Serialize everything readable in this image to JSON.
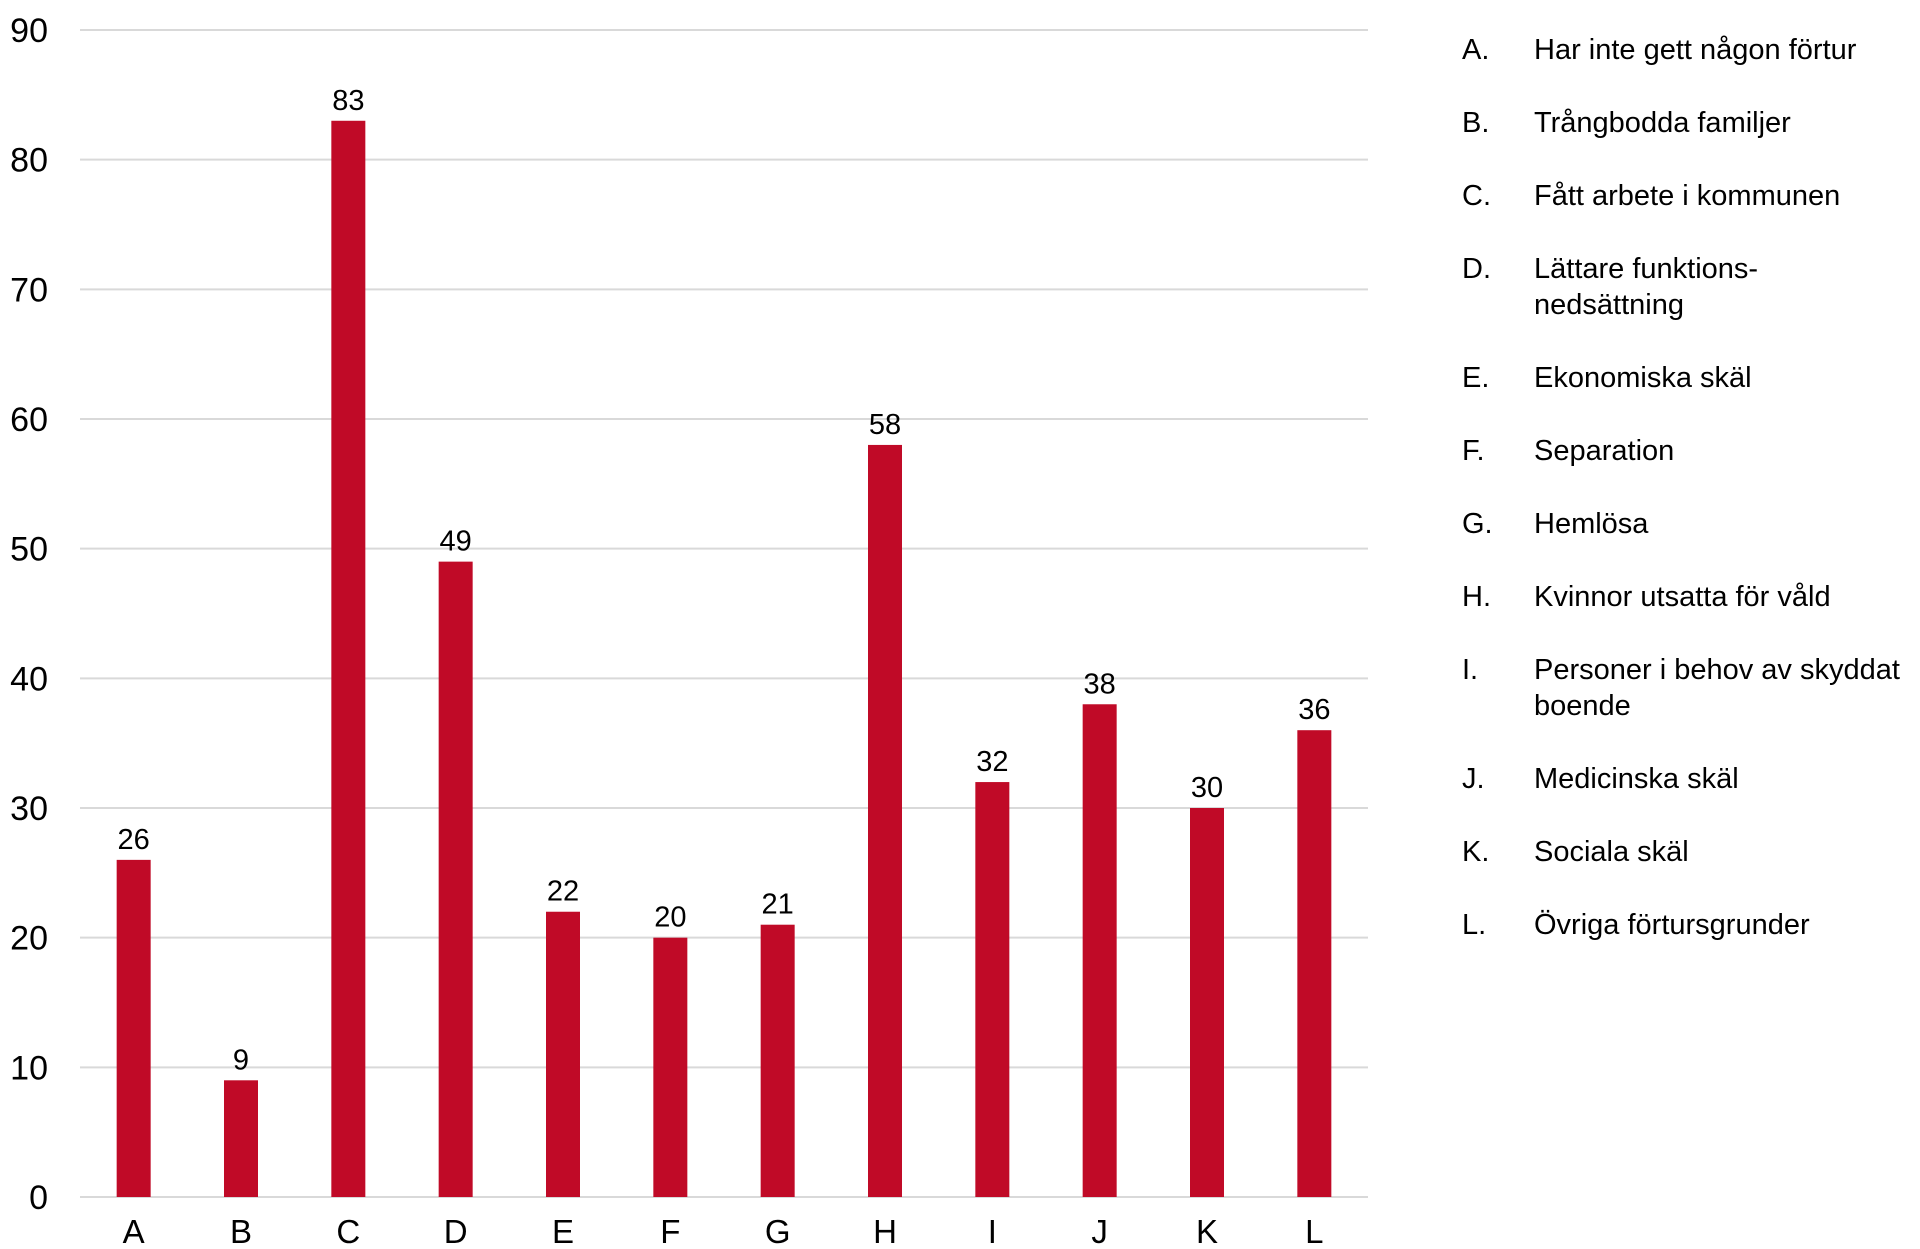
{
  "chart_data": {
    "type": "bar",
    "title": "",
    "xlabel": "",
    "ylabel": "",
    "categories": [
      "A",
      "B",
      "C",
      "D",
      "E",
      "F",
      "G",
      "H",
      "I",
      "J",
      "K",
      "L"
    ],
    "values": [
      26,
      9,
      83,
      49,
      22,
      20,
      21,
      58,
      32,
      38,
      30,
      36
    ],
    "data_labels": [
      "26",
      "9",
      "83",
      "49",
      "22",
      "20",
      "21",
      "58",
      "32",
      "38",
      "30",
      "36"
    ],
    "ylim": [
      0,
      90
    ],
    "yticks": [
      "0",
      "10",
      "20",
      "30",
      "40",
      "50",
      "60",
      "70",
      "80",
      "90"
    ],
    "grid": true,
    "legend_placement": "right",
    "bar_color": "#C00A27",
    "grid_color": "#D9D9D9",
    "legend": [
      {
        "key": "A.",
        "label": "Har inte gett någon förtur"
      },
      {
        "key": "B.",
        "label": "Trångbodda familjer"
      },
      {
        "key": "C.",
        "label": "Fått arbete i kommunen"
      },
      {
        "key": "D.",
        "label": "Lättare funktions-nedsättning"
      },
      {
        "key": "E.",
        "label": "Ekonomiska skäl"
      },
      {
        "key": "F.",
        "label": "Separation"
      },
      {
        "key": "G.",
        "label": "Hemlösa"
      },
      {
        "key": "H.",
        "label": "Kvinnor utsatta för våld"
      },
      {
        "key": "I.",
        "label": "Personer i behov av skyddat boende"
      },
      {
        "key": "J.",
        "label": "Medicinska skäl"
      },
      {
        "key": "K.",
        "label": "Sociala skäl"
      },
      {
        "key": "L.",
        "label": "Övriga förtursgrunder"
      }
    ]
  }
}
